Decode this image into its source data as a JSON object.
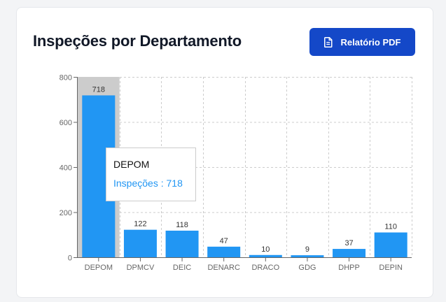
{
  "header": {
    "title": "Inspeções por Departamento",
    "pdf_button_label": "Relatório PDF"
  },
  "colors": {
    "bar": "#2196f3",
    "button": "#1448c8",
    "hover_cursor": "#cccccc"
  },
  "tooltip": {
    "category": "DEPOM",
    "series_name": "Inspeções",
    "separator": " : ",
    "value": 718
  },
  "chart_data": {
    "type": "bar",
    "categories": [
      "DEPOM",
      "DPMCV",
      "DEIC",
      "DENARC",
      "DRACO",
      "GDG",
      "DHPP",
      "DEPIN"
    ],
    "series": [
      {
        "name": "Inspeções",
        "values": [
          718,
          122,
          118,
          47,
          10,
          9,
          37,
          110
        ]
      }
    ],
    "ylim": [
      0,
      800
    ],
    "yticks": [
      0,
      200,
      400,
      600,
      800
    ],
    "grid": true,
    "grid_style": "dashed",
    "data_labels": true,
    "highlighted_category": "DEPOM",
    "title": "",
    "xlabel": "",
    "ylabel": ""
  }
}
